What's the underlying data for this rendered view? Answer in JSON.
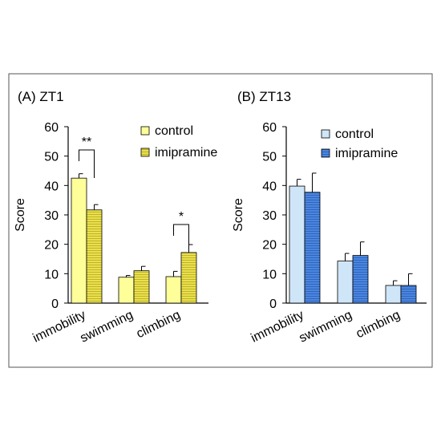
{
  "chart_data": [
    {
      "type": "bar",
      "title": "(A) ZT1",
      "ylabel": "Score",
      "ylim": [
        0,
        60
      ],
      "yticks": [
        0,
        10,
        20,
        30,
        40,
        50,
        60
      ],
      "categories": [
        "immobility",
        "swimming",
        "climbing"
      ],
      "series": [
        {
          "name": "control",
          "color": "#ffff99",
          "pattern": "solid",
          "values": [
            42.5,
            8.8,
            9.0
          ],
          "errors": [
            1.5,
            0.6,
            1.8
          ]
        },
        {
          "name": "imipramine",
          "color": "#e8e050",
          "pattern": "hlines",
          "values": [
            31.7,
            11.0,
            17.2
          ],
          "errors": [
            1.8,
            1.5,
            2.7
          ]
        }
      ],
      "legend_position": "top-right",
      "annotations": [
        {
          "category": "immobility",
          "label": "**"
        },
        {
          "category": "climbing",
          "label": "*"
        }
      ]
    },
    {
      "type": "bar",
      "title": "(B) ZT13",
      "ylabel": "Score",
      "ylim": [
        0,
        60
      ],
      "yticks": [
        0,
        10,
        20,
        30,
        40,
        50,
        60
      ],
      "categories": [
        "immobility",
        "swimming",
        "climbing"
      ],
      "series": [
        {
          "name": "control",
          "color": "#cfe6f8",
          "pattern": "solid",
          "values": [
            39.8,
            14.3,
            6.0
          ],
          "errors": [
            2.3,
            2.6,
            1.6
          ]
        },
        {
          "name": "imipramine",
          "color": "#4a86e0",
          "pattern": "hlines",
          "values": [
            37.7,
            16.2,
            6.0
          ],
          "errors": [
            6.5,
            4.6,
            4.0
          ]
        }
      ],
      "legend_position": "top-right",
      "annotations": []
    }
  ]
}
